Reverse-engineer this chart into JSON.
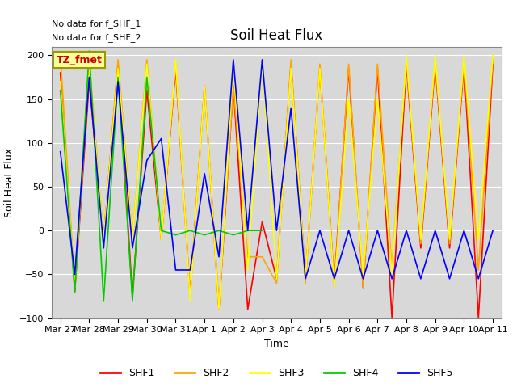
{
  "title": "Soil Heat Flux",
  "ylabel": "Soil Heat Flux",
  "xlabel": "Time",
  "text_no_data_1": "No data for f_SHF_1",
  "text_no_data_2": "No data for f_SHF_2",
  "legend_label": "TZ_fmet",
  "ylim": [
    -100,
    210
  ],
  "series": {
    "SHF1": {
      "color": "#ff0000",
      "x": [
        0,
        0.5,
        1,
        1.5,
        2,
        2.5,
        3,
        3.5,
        4,
        4.5,
        5,
        5.5,
        6,
        6.5,
        7,
        7.5,
        8,
        8.5,
        9,
        9.5,
        10,
        10.5,
        11,
        11.5,
        12,
        12.5,
        13,
        13.5,
        14,
        14.5,
        15
      ],
      "values": [
        180,
        -70,
        170,
        -10,
        190,
        -75,
        160,
        -10,
        185,
        -75,
        165,
        -90,
        165,
        -90,
        10,
        -55,
        190,
        -55,
        185,
        -60,
        185,
        -65,
        185,
        -100,
        190,
        -20,
        190,
        -20,
        190,
        -100,
        190
      ]
    },
    "SHF2": {
      "color": "#ffa500",
      "x": [
        0,
        0.5,
        1,
        1.5,
        2,
        2.5,
        3,
        3.5,
        4,
        4.5,
        5,
        5.5,
        6,
        6.5,
        7,
        7.5,
        8,
        8.5,
        9,
        9.5,
        10,
        10.5,
        11,
        11.5,
        12,
        12.5,
        13,
        13.5,
        14,
        14.5,
        15
      ],
      "values": [
        200,
        -65,
        195,
        -10,
        195,
        -10,
        195,
        -10,
        190,
        -75,
        165,
        -85,
        165,
        -30,
        -30,
        -60,
        195,
        -60,
        190,
        -65,
        190,
        -65,
        190,
        -45,
        195,
        -15,
        195,
        -15,
        195,
        -45,
        195
      ]
    },
    "SHF3": {
      "color": "#ffff00",
      "x": [
        0,
        0.5,
        1,
        1.5,
        2,
        2.5,
        3,
        3.5,
        4,
        4.5,
        5,
        5.5,
        6,
        6.5,
        7,
        7.5,
        8,
        8.5,
        9,
        9.5,
        10,
        10.5,
        11,
        11.5,
        12,
        12.5,
        13,
        13.5,
        14,
        14.5,
        15
      ],
      "values": [
        170,
        -65,
        185,
        -10,
        185,
        -10,
        190,
        -10,
        195,
        -80,
        165,
        -90,
        190,
        -45,
        195,
        -55,
        185,
        -55,
        185,
        -65,
        150,
        -50,
        150,
        -50,
        200,
        -10,
        200,
        -10,
        200,
        -10,
        200
      ]
    },
    "SHF4": {
      "color": "#00cc00",
      "x": [
        0,
        0.5,
        1,
        1.5,
        2,
        2.5,
        3,
        3.5,
        4,
        4.5,
        5,
        5.5,
        6,
        6.5,
        7
      ],
      "values": [
        160,
        -70,
        205,
        -80,
        175,
        -80,
        175,
        0,
        -5,
        0,
        -5,
        0,
        -5,
        0,
        0
      ]
    },
    "SHF5": {
      "color": "#0000ff",
      "x": [
        0,
        0.5,
        1,
        1.5,
        2,
        2.5,
        3,
        3.5,
        4,
        4.5,
        5,
        5.5,
        6,
        6.5,
        7,
        7.5,
        8,
        8.5,
        9,
        9.5,
        10,
        10.5,
        11,
        11.5,
        12,
        12.5,
        13,
        13.5,
        14,
        14.5,
        15
      ],
      "values": [
        90,
        -50,
        175,
        -20,
        170,
        -20,
        80,
        105,
        -45,
        -45,
        65,
        -30,
        195,
        0,
        195,
        0,
        140,
        -55,
        0,
        -55,
        0,
        -55,
        0,
        -55,
        0,
        -55,
        0,
        -55,
        0,
        -55,
        0
      ]
    }
  },
  "xtick_positions": [
    0,
    1,
    2,
    3,
    4,
    5,
    6,
    7,
    8,
    9,
    10,
    11,
    12,
    13,
    14,
    15
  ],
  "xtick_labels": [
    "Mar 27",
    "Mar 28",
    "Mar 29",
    "Mar 30",
    "Mar 31",
    "Apr 1",
    "Apr 2",
    "Apr 3",
    "Apr 4",
    "Apr 5",
    "Apr 6",
    "Apr 7",
    "Apr 8",
    "Apr 9",
    "Apr 10",
    "Apr 11"
  ],
  "legend_entries": [
    "SHF1",
    "SHF2",
    "SHF3",
    "SHF4",
    "SHF5"
  ],
  "legend_colors": [
    "#ff0000",
    "#ffa500",
    "#ffff00",
    "#00cc00",
    "#0000ff"
  ],
  "legend_box_color": "#ffff99",
  "legend_box_edge": "#999900",
  "background_color": "#d8d8d8",
  "grid_color": "#ffffff",
  "title_fontsize": 12,
  "axis_fontsize": 9,
  "tick_fontsize": 8
}
